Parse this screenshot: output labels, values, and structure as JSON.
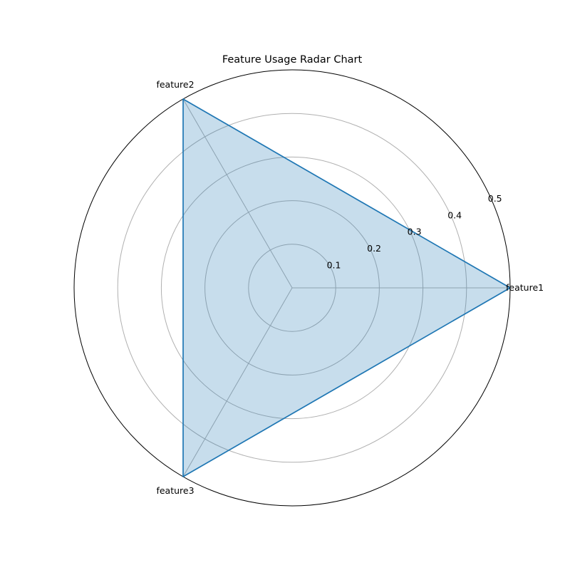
{
  "chart_data": {
    "type": "radar",
    "title": "Feature Usage Radar Chart",
    "categories": [
      "feature1",
      "feature2",
      "feature3"
    ],
    "series": [
      {
        "values": [
          0.5,
          0.5,
          0.5
        ]
      }
    ],
    "rlim": [
      0,
      0.5
    ],
    "rticks": [
      0.1,
      0.2,
      0.3,
      0.4,
      0.5
    ],
    "rtick_labels": [
      "0.1",
      "0.2",
      "0.3",
      "0.4",
      "0.5"
    ],
    "grid": true,
    "colors": {
      "line": "#1f77b4",
      "fill": "#1f77b4",
      "grid": "#b0b0b0",
      "frame": "#000000"
    }
  }
}
